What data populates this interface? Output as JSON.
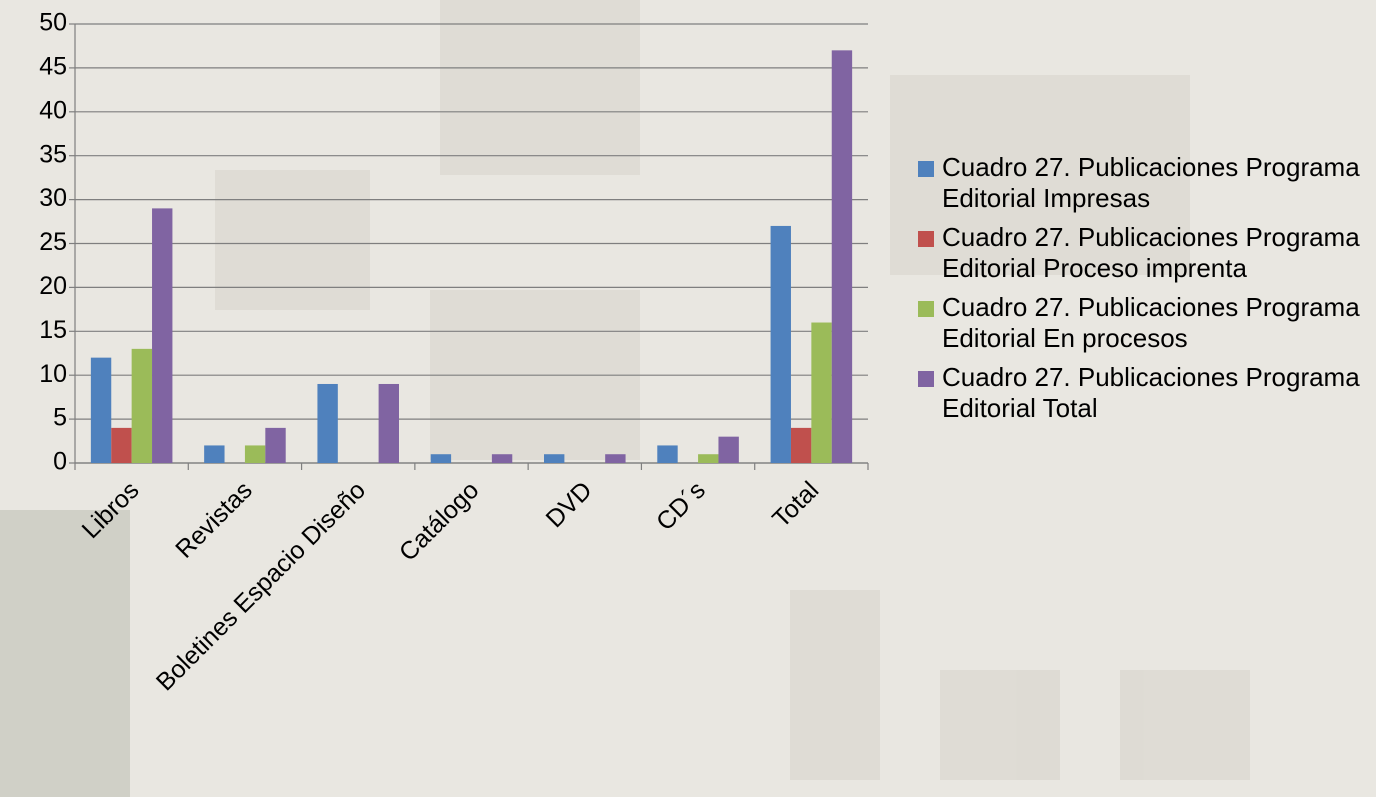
{
  "chart_data": {
    "type": "bar",
    "categories": [
      "Libros",
      "Revistas",
      "Boletines Espacio Diseño",
      "Catálogo",
      "DVD",
      "CD´s",
      "Total"
    ],
    "series": [
      {
        "name": "Cuadro 27. Publicaciones Programa Editorial Impresas",
        "color": "#4f81bd",
        "values": [
          12,
          2,
          9,
          1,
          1,
          2,
          27
        ]
      },
      {
        "name": "Cuadro 27. Publicaciones Programa Editorial Proceso imprenta",
        "color": "#c0504d",
        "values": [
          4,
          0,
          0,
          0,
          0,
          0,
          4
        ]
      },
      {
        "name": "Cuadro 27. Publicaciones Programa Editorial En procesos",
        "color": "#9bbb59",
        "values": [
          13,
          2,
          0,
          0,
          0,
          1,
          16
        ]
      },
      {
        "name": "Cuadro 27. Publicaciones Programa Editorial Total",
        "color": "#8064a2",
        "values": [
          29,
          4,
          9,
          1,
          1,
          3,
          47
        ]
      }
    ],
    "ylim": [
      0,
      50
    ],
    "yticks": [
      0,
      5,
      10,
      15,
      20,
      25,
      30,
      35,
      40,
      45,
      50
    ],
    "grid": true,
    "legend": "right"
  }
}
